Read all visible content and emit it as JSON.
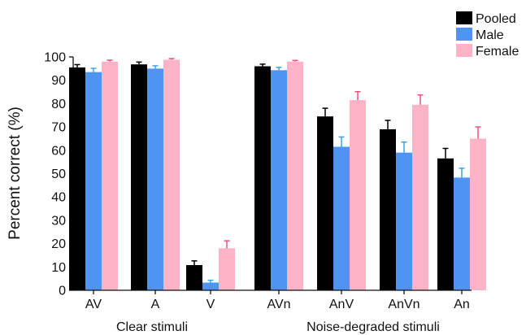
{
  "colors": {
    "pooled": "#000000",
    "male": "#4f94f0",
    "female": "#ffb3c6",
    "male_error": "#3aa3e8",
    "female_error": "#f0507a"
  },
  "chart_data": {
    "type": "bar",
    "ylabel": "Percent correct (%)",
    "xlabel": "",
    "title": "",
    "ylim": [
      0,
      100
    ],
    "yticks": [
      0,
      10,
      20,
      30,
      40,
      50,
      60,
      70,
      80,
      90,
      100
    ],
    "categories": [
      "AV",
      "A",
      "V",
      "AVn",
      "AnV",
      "AnVn",
      "An"
    ],
    "groups": [
      {
        "label": "Clear stimuli",
        "categories": [
          "AV",
          "A",
          "V"
        ]
      },
      {
        "label": "Noise-degraded stimuli",
        "categories": [
          "AVn",
          "AnV",
          "AnVn",
          "An"
        ]
      }
    ],
    "legend_position": "top-right",
    "series": [
      {
        "name": "Pooled",
        "color_key": "pooled",
        "values": [
          95.5,
          96.8,
          10.8,
          96.0,
          74.5,
          69.0,
          56.5
        ],
        "errors": [
          1.2,
          1.0,
          1.8,
          0.9,
          3.5,
          3.8,
          4.3
        ]
      },
      {
        "name": "Male",
        "color_key": "male",
        "values": [
          93.5,
          95.0,
          3.3,
          94.3,
          61.5,
          59.0,
          48.3
        ],
        "errors": [
          1.6,
          1.2,
          1.0,
          1.2,
          4.2,
          4.5,
          4.0
        ]
      },
      {
        "name": "Female",
        "color_key": "female",
        "values": [
          98.0,
          98.8,
          18.0,
          98.0,
          81.5,
          79.5,
          65.0
        ],
        "errors": [
          0.6,
          0.5,
          3.2,
          0.5,
          3.6,
          4.2,
          5.0
        ]
      }
    ]
  }
}
